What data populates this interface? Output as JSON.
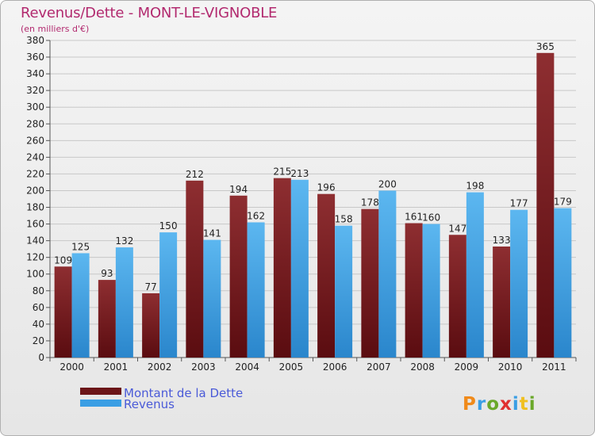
{
  "chart_data": {
    "type": "bar",
    "title": "Revenus/Dette - MONT-LE-VIGNOBLE",
    "subtitle": "(en milliers d'€)",
    "categories": [
      "2000",
      "2001",
      "2002",
      "2003",
      "2004",
      "2005",
      "2006",
      "2007",
      "2008",
      "2009",
      "2010",
      "2011"
    ],
    "series": [
      {
        "name": "Montant de la Dette",
        "color": "#7a1a1e",
        "values": [
          109,
          93,
          77,
          212,
          194,
          215,
          196,
          178,
          161,
          147,
          133,
          365
        ]
      },
      {
        "name": "Revenus",
        "color": "#3a9ee4",
        "values": [
          125,
          132,
          150,
          141,
          162,
          213,
          158,
          200,
          160,
          198,
          177,
          179
        ]
      }
    ],
    "ylim": [
      0,
      380
    ],
    "ytick_step": 20,
    "grid": true,
    "legend_position": "bottom-left"
  },
  "brand": {
    "name": "Proxiti"
  }
}
